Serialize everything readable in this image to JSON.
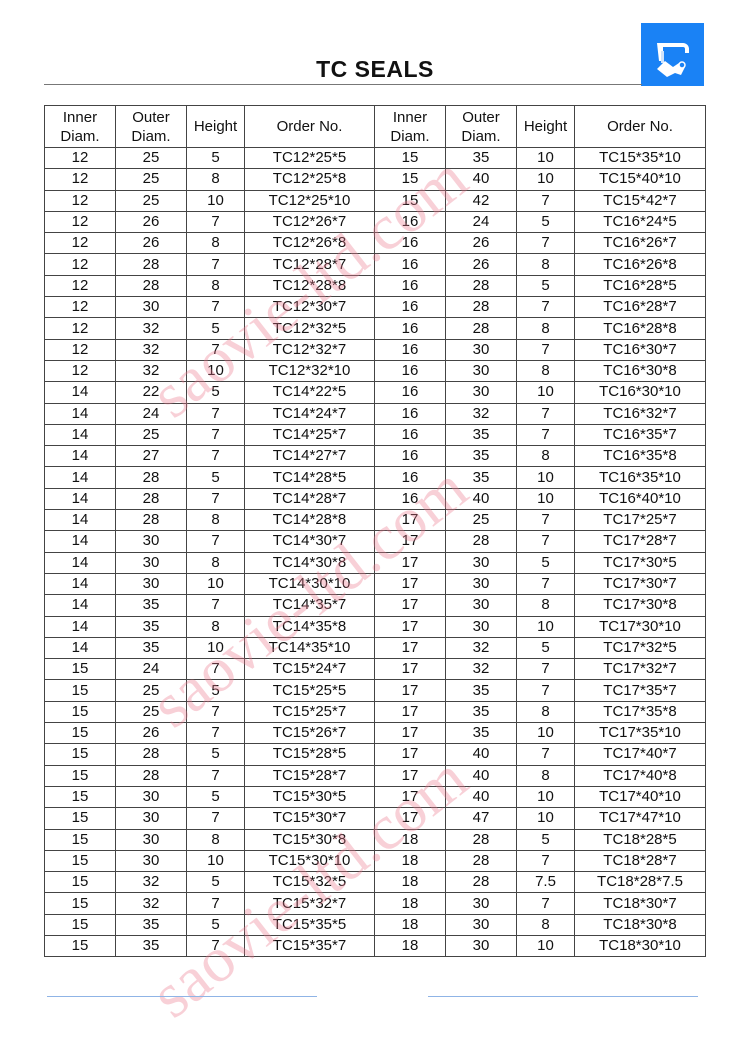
{
  "title": "TC SEALS",
  "watermark": "saovie-ltd.com",
  "colors": {
    "logo": "#1a82f5",
    "watermark": "#eb788c",
    "footer_rule": "#8fb4e6"
  },
  "headers": [
    "Inner Diam.",
    "Outer Diam.",
    "Height",
    "Order No.",
    "Inner Diam.",
    "Outer Diam.",
    "Height",
    "Order No."
  ],
  "rows": [
    [
      "12",
      "25",
      "5",
      "TC12*25*5",
      "15",
      "35",
      "10",
      "TC15*35*10"
    ],
    [
      "12",
      "25",
      "8",
      "TC12*25*8",
      "15",
      "40",
      "10",
      "TC15*40*10"
    ],
    [
      "12",
      "25",
      "10",
      "TC12*25*10",
      "15",
      "42",
      "7",
      "TC15*42*7"
    ],
    [
      "12",
      "26",
      "7",
      "TC12*26*7",
      "16",
      "24",
      "5",
      "TC16*24*5"
    ],
    [
      "12",
      "26",
      "8",
      "TC12*26*8",
      "16",
      "26",
      "7",
      "TC16*26*7"
    ],
    [
      "12",
      "28",
      "7",
      "TC12*28*7",
      "16",
      "26",
      "8",
      "TC16*26*8"
    ],
    [
      "12",
      "28",
      "8",
      "TC12*28*8",
      "16",
      "28",
      "5",
      "TC16*28*5"
    ],
    [
      "12",
      "30",
      "7",
      "TC12*30*7",
      "16",
      "28",
      "7",
      "TC16*28*7"
    ],
    [
      "12",
      "32",
      "5",
      "TC12*32*5",
      "16",
      "28",
      "8",
      "TC16*28*8"
    ],
    [
      "12",
      "32",
      "7",
      "TC12*32*7",
      "16",
      "30",
      "7",
      "TC16*30*7"
    ],
    [
      "12",
      "32",
      "10",
      "TC12*32*10",
      "16",
      "30",
      "8",
      "TC16*30*8"
    ],
    [
      "14",
      "22",
      "5",
      "TC14*22*5",
      "16",
      "30",
      "10",
      "TC16*30*10"
    ],
    [
      "14",
      "24",
      "7",
      "TC14*24*7",
      "16",
      "32",
      "7",
      "TC16*32*7"
    ],
    [
      "14",
      "25",
      "7",
      "TC14*25*7",
      "16",
      "35",
      "7",
      "TC16*35*7"
    ],
    [
      "14",
      "27",
      "7",
      "TC14*27*7",
      "16",
      "35",
      "8",
      "TC16*35*8"
    ],
    [
      "14",
      "28",
      "5",
      "TC14*28*5",
      "16",
      "35",
      "10",
      "TC16*35*10"
    ],
    [
      "14",
      "28",
      "7",
      "TC14*28*7",
      "16",
      "40",
      "10",
      "TC16*40*10"
    ],
    [
      "14",
      "28",
      "8",
      "TC14*28*8",
      "17",
      "25",
      "7",
      "TC17*25*7"
    ],
    [
      "14",
      "30",
      "7",
      "TC14*30*7",
      "17",
      "28",
      "7",
      "TC17*28*7"
    ],
    [
      "14",
      "30",
      "8",
      "TC14*30*8",
      "17",
      "30",
      "5",
      "TC17*30*5"
    ],
    [
      "14",
      "30",
      "10",
      "TC14*30*10",
      "17",
      "30",
      "7",
      "TC17*30*7"
    ],
    [
      "14",
      "35",
      "7",
      "TC14*35*7",
      "17",
      "30",
      "8",
      "TC17*30*8"
    ],
    [
      "14",
      "35",
      "8",
      "TC14*35*8",
      "17",
      "30",
      "10",
      "TC17*30*10"
    ],
    [
      "14",
      "35",
      "10",
      "TC14*35*10",
      "17",
      "32",
      "5",
      "TC17*32*5"
    ],
    [
      "15",
      "24",
      "7",
      "TC15*24*7",
      "17",
      "32",
      "7",
      "TC17*32*7"
    ],
    [
      "15",
      "25",
      "5",
      "TC15*25*5",
      "17",
      "35",
      "7",
      "TC17*35*7"
    ],
    [
      "15",
      "25",
      "7",
      "TC15*25*7",
      "17",
      "35",
      "8",
      "TC17*35*8"
    ],
    [
      "15",
      "26",
      "7",
      "TC15*26*7",
      "17",
      "35",
      "10",
      "TC17*35*10"
    ],
    [
      "15",
      "28",
      "5",
      "TC15*28*5",
      "17",
      "40",
      "7",
      "TC17*40*7"
    ],
    [
      "15",
      "28",
      "7",
      "TC15*28*7",
      "17",
      "40",
      "8",
      "TC17*40*8"
    ],
    [
      "15",
      "30",
      "5",
      "TC15*30*5",
      "17",
      "40",
      "10",
      "TC17*40*10"
    ],
    [
      "15",
      "30",
      "7",
      "TC15*30*7",
      "17",
      "47",
      "10",
      "TC17*47*10"
    ],
    [
      "15",
      "30",
      "8",
      "TC15*30*8",
      "18",
      "28",
      "5",
      "TC18*28*5"
    ],
    [
      "15",
      "30",
      "10",
      "TC15*30*10",
      "18",
      "28",
      "7",
      "TC18*28*7"
    ],
    [
      "15",
      "32",
      "5",
      "TC15*32*5",
      "18",
      "28",
      "7.5",
      "TC18*28*7.5"
    ],
    [
      "15",
      "32",
      "7",
      "TC15*32*7",
      "18",
      "30",
      "7",
      "TC18*30*7"
    ],
    [
      "15",
      "35",
      "5",
      "TC15*35*5",
      "18",
      "30",
      "8",
      "TC18*30*8"
    ],
    [
      "15",
      "35",
      "7",
      "TC15*35*7",
      "18",
      "30",
      "10",
      "TC18*30*10"
    ]
  ]
}
